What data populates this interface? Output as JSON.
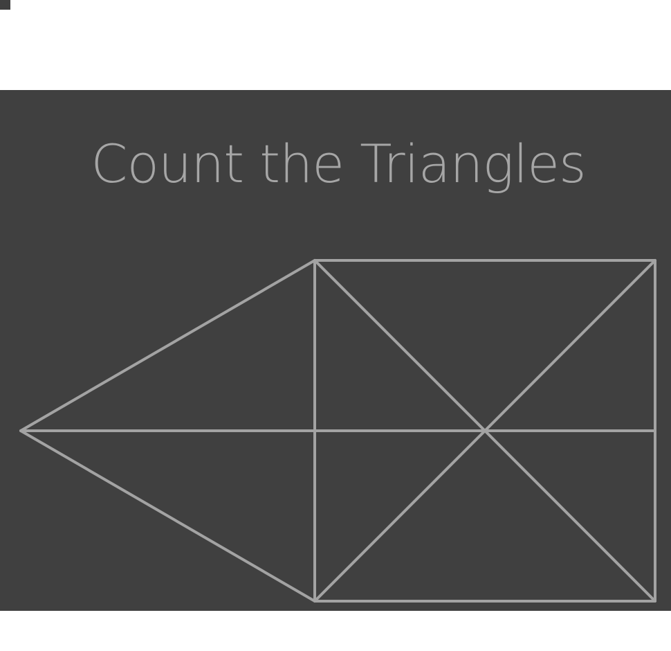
{
  "puzzle": {
    "title": "Count the Triangles",
    "colors": {
      "background": "#404040",
      "line": "#a3a3a3",
      "title": "#a6a6a6",
      "page": "#ffffff"
    }
  }
}
